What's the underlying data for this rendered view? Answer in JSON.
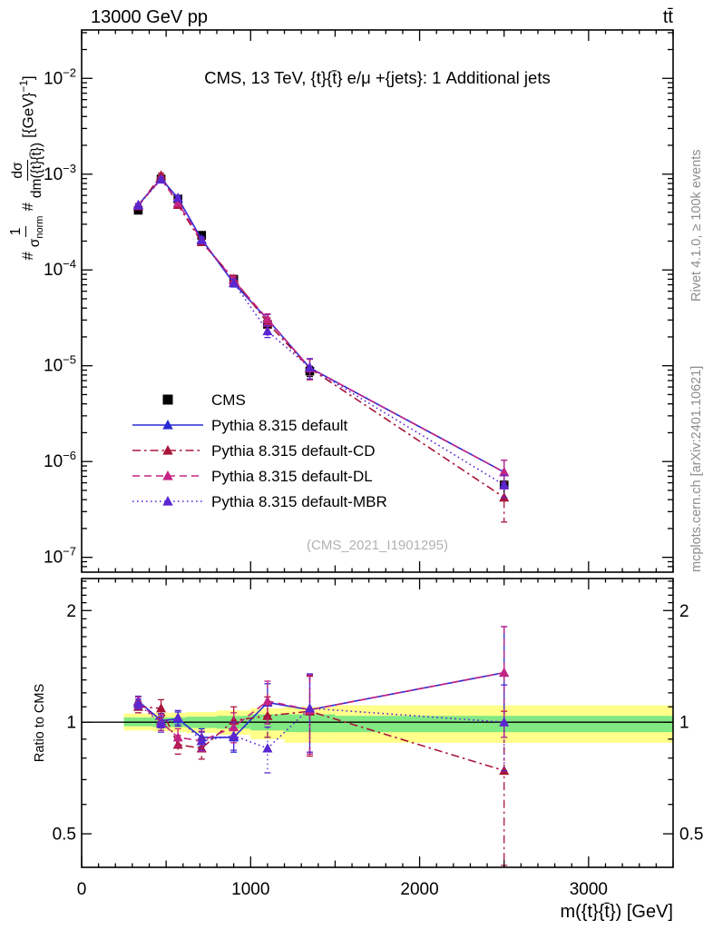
{
  "header": {
    "left": "13000 GeV pp",
    "right": "tt̄"
  },
  "side_notes": {
    "top_right": "Rivet 4.1.0, ≥ 100k events",
    "bottom_right": "mcplots.cern.ch [arXiv:2401.10621]"
  },
  "watermark": "(CMS_2021_I1901295)",
  "main_panel": {
    "title": "CMS, 13 TeV, {t}{t̄} e/μ +{jets}: 1 Additional jets",
    "ylabel_parts": {
      "hash1": "#",
      "num1": "1",
      "den1_base": "σ",
      "den1_sub": "norm",
      "hash2": "#",
      "num2": "dσ",
      "den2": "dm({t}{t̄})",
      "unit_open": "[{GeV}",
      "unit_sup": "−1",
      "unit_close": "]"
    }
  },
  "ratio_panel": {
    "ylabel": "Ratio to CMS"
  },
  "x_axis": {
    "title": "m({t}{t̄}) [GeV]"
  },
  "colors": {
    "cms": "#000000",
    "default": "#2a2ad4",
    "default_cd": "#a81539",
    "default_dl": "#c42483",
    "default_mbr": "#5a26d0",
    "band_yellow": "#ffff8a",
    "band_green": "#82e882",
    "side_note_gray": "#8c8c8c",
    "watermark_gray": "#b2b2b2"
  },
  "chart_data": {
    "type": "line",
    "title": "CMS, 13 TeV, {t}{t̄} e/μ +{jets}: 1 Additional jets",
    "xlabel": "m({t}{t̄}) [GeV]",
    "ylabel": "#1/σ_norm # dσ/dm({t}{t̄}) [{GeV}^-1]",
    "ratio_ylabel": "Ratio to CMS",
    "x_range": [
      0,
      3500
    ],
    "main_y_range": [
      7e-08,
      0.032
    ],
    "ratio_y_range": [
      0.406,
      2.44
    ],
    "main_y_log": true,
    "ratio_y_log": true,
    "x_ticks": {
      "major": [
        0,
        1000,
        2000,
        3000
      ],
      "medium_step": 500,
      "minor_step": 100
    },
    "main_y_tick_exponents": [
      -2,
      -3,
      -4,
      -5,
      -6,
      -7
    ],
    "ratio_y_ticks": [
      2,
      1,
      0.5
    ],
    "x": [
      335,
      470,
      570,
      710,
      900,
      1100,
      1350,
      2500
    ],
    "cms": {
      "label": "CMS",
      "values": [
        0.00042,
        0.00089,
        0.00055,
        0.00023,
        8e-05,
        2.7e-05,
        8.8e-06,
        5.7e-07
      ],
      "rel_err": [
        0.03,
        0.02,
        0.02,
        0.03,
        0.05,
        0.07,
        0.12,
        0.3
      ]
    },
    "series": [
      {
        "name": "Pythia 8.315 default",
        "color": "#2a2ad4",
        "dash": "solid",
        "ratio": [
          1.14,
          1.01,
          1.02,
          0.91,
          0.91,
          1.13,
          1.08,
          1.36
        ],
        "ratio_err": [
          0.035,
          0.045,
          0.045,
          0.05,
          0.08,
          0.14,
          0.26,
          0.45
        ]
      },
      {
        "name": "Pythia 8.315 default-CD",
        "color": "#a81539",
        "dash": "dashdot",
        "ratio": [
          1.1,
          1.09,
          0.87,
          0.85,
          1.01,
          1.04,
          1.07,
          0.74
        ],
        "ratio_err": [
          0.04,
          0.06,
          0.05,
          0.055,
          0.09,
          0.13,
          0.26,
          0.33
        ]
      },
      {
        "name": "Pythia 8.315 default-DL",
        "color": "#c42483",
        "dash": "dashed",
        "ratio": [
          1.13,
          1.0,
          0.91,
          0.89,
          0.97,
          1.14,
          1.08,
          1.36
        ],
        "ratio_err": [
          0.04,
          0.05,
          0.05,
          0.055,
          0.09,
          0.15,
          0.26,
          0.45
        ]
      },
      {
        "name": "Pythia 8.315 default-MBR",
        "color": "#5a26d0",
        "dash": "dotted",
        "ratio": [
          1.12,
          0.99,
          1.03,
          0.89,
          0.92,
          0.85,
          1.09,
          1.0
        ],
        "ratio_err": [
          0.035,
          0.05,
          0.045,
          0.05,
          0.08,
          0.12,
          0.26,
          0.26
        ]
      }
    ],
    "bands": {
      "edges": [
        250,
        420,
        520,
        620,
        800,
        1000,
        1200,
        1500,
        3500
      ],
      "yellow_lo": [
        0.95,
        0.945,
        0.94,
        0.935,
        0.925,
        0.9,
        0.88,
        0.88
      ],
      "yellow_hi": [
        1.055,
        1.06,
        1.06,
        1.065,
        1.075,
        1.09,
        1.1,
        1.11
      ],
      "green_lo": [
        0.975,
        0.97,
        0.97,
        0.965,
        0.96,
        0.95,
        0.94,
        0.94
      ],
      "green_hi": [
        1.03,
        1.03,
        1.03,
        1.035,
        1.04,
        1.05,
        1.05,
        1.04
      ]
    },
    "legend_position": "left-middle",
    "grid": false
  }
}
